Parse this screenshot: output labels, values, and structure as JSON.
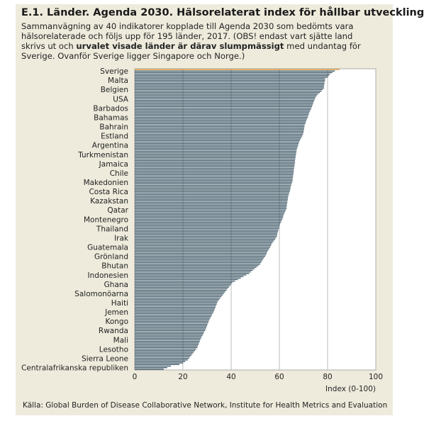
{
  "chart_data": {
    "type": "hbar",
    "title": "E.1. Länder. Agenda 2030. Hälsorelaterat index för hållbar utveckling",
    "subtitle": [
      "Sammanvägning av 40 indikatorer kopplade till Agenda 2030 som bedömts vara hälsorelaterade och följs upp för 195 länder, 2017. (OBS! endast vart sjätte land skrivs ut och ",
      "urvalet visade länder är därav slumpmässigt",
      " med undantag för Sverige. Ovanför Sverige ligger Singapore och Norge.)"
    ],
    "source": "Källa: Global Burden of Disease Collaborative Network, Institute for Health Metrics and Evaluation",
    "xlabel": "Index (0-100)",
    "xlim": [
      0,
      100
    ],
    "xticks": [
      0,
      20,
      40,
      60,
      80,
      100
    ],
    "grid": true,
    "color": "#2e4a5a",
    "highlight_index": 0,
    "highlight_color": "#e69a2e",
    "categories": [
      "Sverige",
      null,
      null,
      null,
      null,
      null,
      "Malta",
      null,
      null,
      null,
      null,
      null,
      "Belgien",
      null,
      null,
      null,
      null,
      null,
      "USA",
      null,
      null,
      null,
      null,
      null,
      "Barbados",
      null,
      null,
      null,
      null,
      null,
      "Bahamas",
      null,
      null,
      null,
      null,
      null,
      "Bahrain",
      null,
      null,
      null,
      null,
      null,
      "Estland",
      null,
      null,
      null,
      null,
      null,
      "Argentina",
      null,
      null,
      null,
      null,
      null,
      "Turkmenistan",
      null,
      null,
      null,
      null,
      null,
      "Jamaica",
      null,
      null,
      null,
      null,
      null,
      "Chile",
      null,
      null,
      null,
      null,
      null,
      "Makedonien",
      null,
      null,
      null,
      null,
      null,
      "Costa Rica",
      null,
      null,
      null,
      null,
      null,
      "Kazakstan",
      null,
      null,
      null,
      null,
      null,
      "Qatar",
      null,
      null,
      null,
      null,
      null,
      "Montenegro",
      null,
      null,
      null,
      null,
      null,
      "Thailand",
      null,
      null,
      null,
      null,
      null,
      "Irak",
      null,
      null,
      null,
      null,
      null,
      "Guatemala",
      null,
      null,
      null,
      null,
      null,
      "Grönland",
      null,
      null,
      null,
      null,
      null,
      "Bhutan",
      null,
      null,
      null,
      null,
      null,
      "Indonesien",
      null,
      null,
      null,
      null,
      null,
      "Ghana",
      null,
      null,
      null,
      null,
      null,
      "Salomonöarna",
      null,
      null,
      null,
      null,
      null,
      "Haiti",
      null,
      null,
      null,
      null,
      null,
      "Jemen",
      null,
      null,
      null,
      null,
      null,
      "Kongo",
      null,
      null,
      null,
      null,
      null,
      "Rwanda",
      null,
      null,
      null,
      null,
      null,
      "Mali",
      null,
      null,
      null,
      null,
      null,
      "Lesotho",
      null,
      null,
      null,
      null,
      null,
      "Sierra Leone",
      null,
      null,
      null,
      null,
      null,
      "Centralafrikanska republiken",
      null,
      null
    ],
    "values": [
      85,
      83,
      82,
      81,
      80.5,
      80,
      79,
      79,
      78.8,
      78.7,
      78.6,
      78.5,
      78.5,
      78,
      77.5,
      76.8,
      76,
      75.5,
      75,
      74.8,
      74.5,
      74.2,
      74,
      73.8,
      73.5,
      73.3,
      73,
      72.7,
      72.4,
      72.2,
      72,
      71.8,
      71.5,
      71.2,
      71,
      70.8,
      70.5,
      70.4,
      70.3,
      70.2,
      70.1,
      70,
      69.8,
      69.5,
      69.2,
      68.8,
      68.5,
      68.2,
      68,
      67.8,
      67.6,
      67.4,
      67.2,
      67.1,
      67,
      66.9,
      66.8,
      66.7,
      66.6,
      66.5,
      66.5,
      66.4,
      66.3,
      66.2,
      66.1,
      66,
      66,
      65.9,
      65.8,
      65.7,
      65.6,
      65.5,
      65.5,
      65.3,
      65.1,
      64.9,
      64.7,
      64.6,
      64.5,
      64.3,
      64.1,
      63.9,
      63.7,
      63.6,
      63.5,
      63.4,
      63.3,
      63.2,
      63.1,
      63,
      63,
      62.7,
      62.4,
      62.1,
      61.8,
      61.6,
      61.5,
      61.2,
      60.9,
      60.6,
      60.3,
      60.1,
      60,
      59.8,
      59.6,
      59.4,
      59.2,
      59.1,
      59,
      58.6,
      58.2,
      57.7,
      57.2,
      56.8,
      56.5,
      56.2,
      55.8,
      55.4,
      55,
      54.7,
      54.5,
      54.1,
      53.6,
      53.2,
      52.8,
      52.4,
      52,
      51.3,
      50.5,
      49.7,
      48.9,
      48.2,
      47.5,
      46.3,
      45.1,
      44,
      42.8,
      41.6,
      40.5,
      40,
      39.5,
      39,
      38.5,
      38,
      37.5,
      37,
      36.5,
      36,
      35.5,
      35,
      34.5,
      34.2,
      34,
      33.7,
      33.5,
      33.2,
      33,
      32.7,
      32.3,
      32,
      31.7,
      31.3,
      31,
      30.7,
      30.5,
      30.2,
      30,
      29.7,
      29.5,
      29.2,
      28.8,
      28.5,
      28.2,
      27.8,
      27.5,
      27.2,
      27,
      26.7,
      26.5,
      26.2,
      26,
      25.5,
      25,
      24.5,
      24,
      23.5,
      23,
      22.5,
      22,
      21,
      20,
      18.5,
      15,
      13.5,
      12
    ]
  }
}
